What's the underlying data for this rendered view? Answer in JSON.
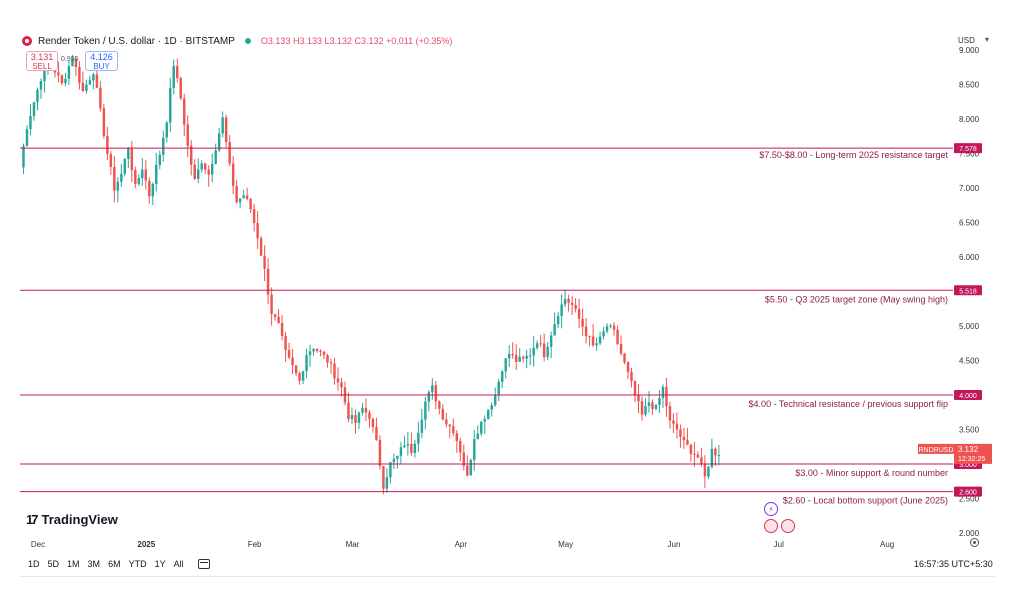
{
  "header": {
    "symbol": "Render Token / U.S. dollar · 1D · BITSTAMP",
    "ohlc": "O3.133 H3.133 L3.132 C3.132 +0.011 (+0.35%)"
  },
  "trade": {
    "sell_price": "3.131",
    "sell_label": "SELL",
    "spread": "0.995",
    "buy_price": "4.126",
    "buy_label": "BUY"
  },
  "currency": "USD",
  "brand": {
    "text": "TradingView"
  },
  "ranges": [
    "1D",
    "5D",
    "1M",
    "3M",
    "6M",
    "YTD",
    "1Y",
    "All"
  ],
  "clock": "16:57:35 UTC+5:30",
  "colors": {
    "up": "#26a69a",
    "down": "#ef5350",
    "level": "#c2185b",
    "annot": "#8b1e4a"
  },
  "chart_data": {
    "type": "candlestick",
    "symbol": "RNDRUSD",
    "ylim": [
      2.0,
      9.0
    ],
    "y_ticks": [
      "2.000",
      "2.500",
      "3.000",
      "3.500",
      "4.000",
      "4.500",
      "5.000",
      "5.500",
      "6.000",
      "6.500",
      "7.000",
      "7.500",
      "8.000",
      "8.500",
      "9.000"
    ],
    "x_ticks": [
      {
        "label": "Dec",
        "day": 0
      },
      {
        "label": "2025",
        "day": 31
      },
      {
        "label": "Feb",
        "day": 62
      },
      {
        "label": "Mar",
        "day": 90
      },
      {
        "label": "Apr",
        "day": 121
      },
      {
        "label": "May",
        "day": 151
      },
      {
        "label": "Jun",
        "day": 182
      },
      {
        "label": "Jul",
        "day": 212
      },
      {
        "label": "Aug",
        "day": 243
      }
    ],
    "xlim_days": [
      -4,
      263
    ],
    "anchors": [
      [
        -4,
        7.3
      ],
      [
        -2,
        7.9
      ],
      [
        2,
        8.6
      ],
      [
        5,
        8.8
      ],
      [
        8,
        8.5
      ],
      [
        11,
        8.9
      ],
      [
        14,
        8.4
      ],
      [
        17,
        8.7
      ],
      [
        19,
        8.1
      ],
      [
        21,
        7.5
      ],
      [
        23,
        7.0
      ],
      [
        25,
        7.2
      ],
      [
        27,
        7.6
      ],
      [
        29,
        7.0
      ],
      [
        31,
        7.3
      ],
      [
        33,
        6.9
      ],
      [
        36,
        7.5
      ],
      [
        38,
        8.0
      ],
      [
        40,
        8.8
      ],
      [
        42,
        8.3
      ],
      [
        44,
        7.6
      ],
      [
        46,
        7.1
      ],
      [
        48,
        7.4
      ],
      [
        50,
        7.2
      ],
      [
        52,
        7.6
      ],
      [
        54,
        8.0
      ],
      [
        56,
        7.3
      ],
      [
        58,
        6.8
      ],
      [
        60,
        6.9
      ],
      [
        62,
        6.7
      ],
      [
        64,
        6.3
      ],
      [
        66,
        5.8
      ],
      [
        68,
        5.2
      ],
      [
        70,
        5.0
      ],
      [
        72,
        4.6
      ],
      [
        74,
        4.4
      ],
      [
        76,
        4.2
      ],
      [
        78,
        4.6
      ],
      [
        80,
        4.7
      ],
      [
        82,
        4.6
      ],
      [
        84,
        4.5
      ],
      [
        86,
        4.3
      ],
      [
        88,
        4.1
      ],
      [
        90,
        3.7
      ],
      [
        92,
        3.6
      ],
      [
        94,
        3.8
      ],
      [
        96,
        3.7
      ],
      [
        98,
        3.3
      ],
      [
        100,
        2.7
      ],
      [
        102,
        3.0
      ],
      [
        104,
        3.1
      ],
      [
        106,
        3.3
      ],
      [
        108,
        3.2
      ],
      [
        110,
        3.5
      ],
      [
        112,
        3.9
      ],
      [
        114,
        4.1
      ],
      [
        116,
        3.8
      ],
      [
        118,
        3.6
      ],
      [
        120,
        3.5
      ],
      [
        122,
        3.2
      ],
      [
        124,
        2.8
      ],
      [
        126,
        3.4
      ],
      [
        128,
        3.6
      ],
      [
        130,
        3.8
      ],
      [
        132,
        4.0
      ],
      [
        134,
        4.4
      ],
      [
        136,
        4.6
      ],
      [
        138,
        4.5
      ],
      [
        140,
        4.5
      ],
      [
        142,
        4.6
      ],
      [
        144,
        4.8
      ],
      [
        146,
        4.6
      ],
      [
        148,
        4.9
      ],
      [
        150,
        5.2
      ],
      [
        152,
        5.4
      ],
      [
        154,
        5.3
      ],
      [
        156,
        5.1
      ],
      [
        158,
        4.9
      ],
      [
        160,
        4.7
      ],
      [
        162,
        4.8
      ],
      [
        164,
        5.0
      ],
      [
        166,
        4.9
      ],
      [
        168,
        4.6
      ],
      [
        170,
        4.3
      ],
      [
        172,
        4.0
      ],
      [
        174,
        3.7
      ],
      [
        176,
        3.9
      ],
      [
        178,
        3.8
      ],
      [
        180,
        4.1
      ],
      [
        182,
        3.6
      ],
      [
        184,
        3.5
      ],
      [
        186,
        3.3
      ],
      [
        188,
        3.2
      ],
      [
        190,
        3.1
      ],
      [
        192,
        2.8
      ],
      [
        194,
        3.2
      ],
      [
        196,
        3.13
      ]
    ],
    "last_price": {
      "label": "RNDRUSD",
      "value": "3.132",
      "countdown": "12:32:25"
    },
    "levels": [
      {
        "value": 7.578,
        "tag": "7.578",
        "text": "$7.50-$8.00 - Long-term 2025 resistance target",
        "pos": "above"
      },
      {
        "value": 5.518,
        "tag": "5.518",
        "text": "$5.50 - Q3 2025 target zone (May swing high)",
        "pos": "below"
      },
      {
        "value": 4.0,
        "tag": "4.000",
        "text": "$4.00 - Technical resistance / previous support flip",
        "pos": "below"
      },
      {
        "value": 3.0,
        "tag": "3.000",
        "text": "$3.00 - Minor support & round number",
        "pos": "below"
      },
      {
        "value": 2.6,
        "tag": "2.600",
        "text": "$2.60 - Local bottom support (June 2025)",
        "pos": "below"
      }
    ]
  }
}
